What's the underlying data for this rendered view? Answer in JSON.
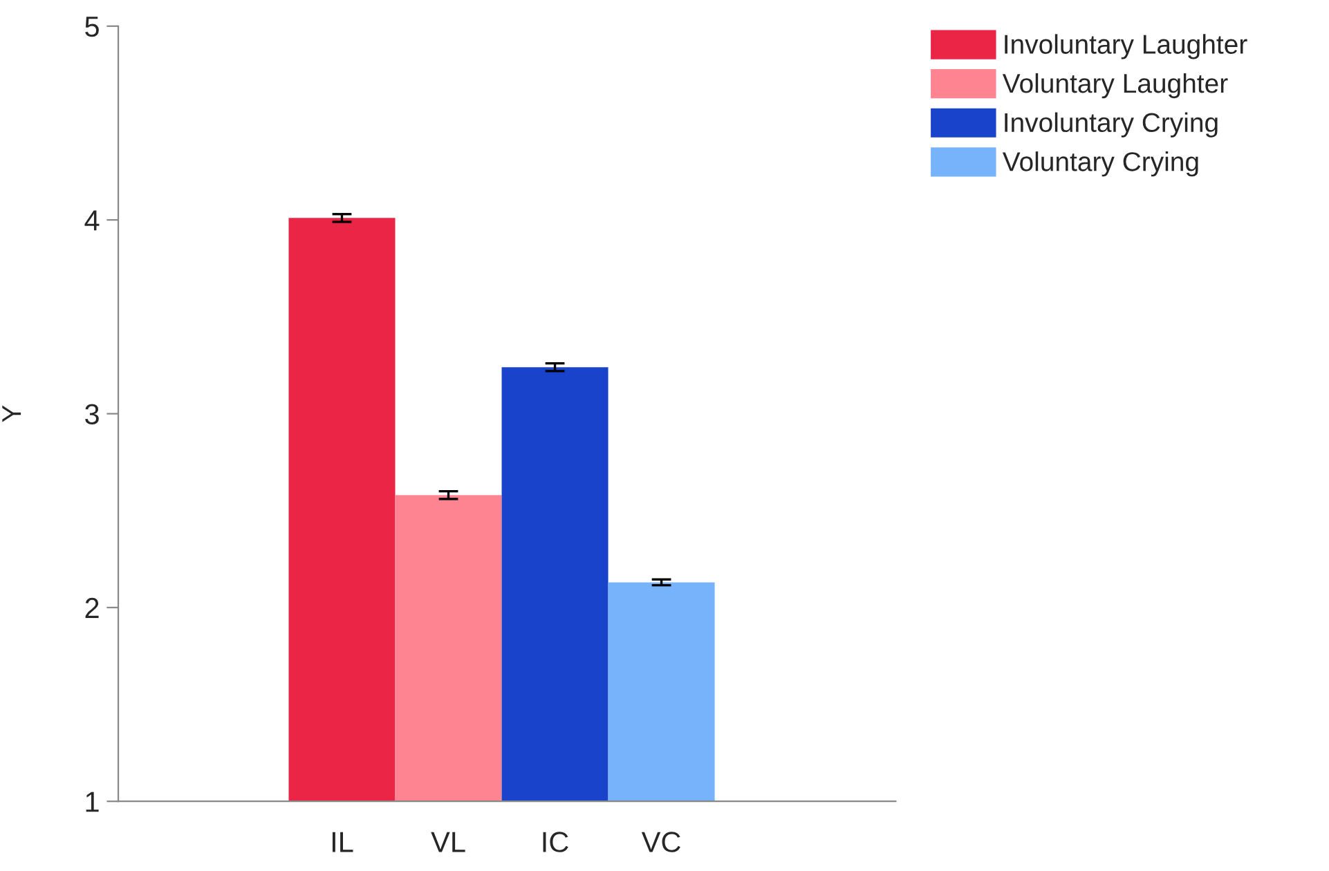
{
  "chart_data": {
    "type": "bar",
    "ylabel": "Y",
    "categories": [
      "IL",
      "VL",
      "IC",
      "VC"
    ],
    "ylim": [
      1,
      5
    ],
    "yticks": [
      1,
      2,
      3,
      4,
      5
    ],
    "grid": false,
    "legend": "top right",
    "series": [
      {
        "name": "Involuntary Laughter",
        "color": "#eb2545",
        "values": [
          4.01,
          null,
          null,
          null
        ],
        "errors": [
          0.02,
          null,
          null,
          null
        ]
      },
      {
        "name": "Voluntary Laughter",
        "color": "#fd8490",
        "values": [
          null,
          2.58,
          null,
          null
        ],
        "errors": [
          null,
          0.02,
          null,
          null
        ]
      },
      {
        "name": "Involuntary Crying",
        "color": "#1a43cc",
        "values": [
          null,
          null,
          3.24,
          null
        ],
        "errors": [
          null,
          null,
          0.02,
          null
        ]
      },
      {
        "name": "Voluntary Crying",
        "color": "#77b3fa",
        "values": [
          null,
          null,
          null,
          2.13
        ],
        "errors": [
          null,
          null,
          null,
          0.015
        ]
      }
    ]
  }
}
